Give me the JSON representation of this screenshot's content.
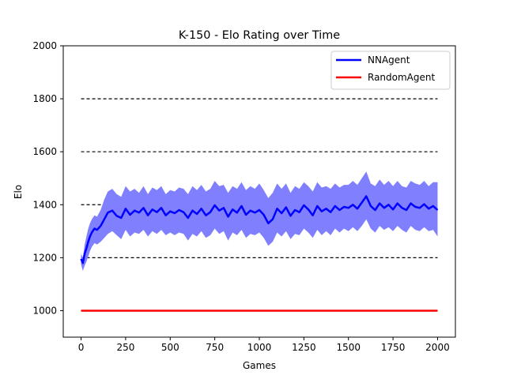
{
  "chart_data": {
    "type": "line",
    "title": "K-150 - Elo Rating over Time",
    "xlabel": "Games",
    "ylabel": "Elo",
    "xlim": [
      -100,
      2100
    ],
    "ylim": [
      900,
      2000
    ],
    "x_ticks": [
      0,
      250,
      500,
      750,
      1000,
      1250,
      1500,
      1750,
      2000
    ],
    "y_ticks": [
      1000,
      1200,
      1400,
      1600,
      1800,
      2000
    ],
    "reference_lines": [
      1200,
      1400,
      1600,
      1800
    ],
    "legend_position": "top-right",
    "colors": {
      "nnagent": "#0000ff",
      "nnagent_band": "#8080ff",
      "randomagent": "#ff0000",
      "reference": "#000000"
    },
    "series": [
      {
        "name": "NNAgent",
        "color": "#0000ff",
        "x": [
          0,
          10,
          20,
          30,
          40,
          50,
          60,
          75,
          90,
          110,
          130,
          150,
          175,
          200,
          225,
          250,
          275,
          300,
          325,
          350,
          375,
          400,
          425,
          450,
          475,
          500,
          525,
          550,
          575,
          600,
          625,
          650,
          675,
          700,
          725,
          750,
          775,
          800,
          825,
          850,
          875,
          900,
          925,
          950,
          975,
          1000,
          1025,
          1050,
          1075,
          1100,
          1125,
          1150,
          1175,
          1200,
          1225,
          1250,
          1275,
          1300,
          1325,
          1350,
          1375,
          1400,
          1425,
          1450,
          1475,
          1500,
          1525,
          1550,
          1575,
          1600,
          1625,
          1650,
          1675,
          1700,
          1725,
          1750,
          1775,
          1800,
          1825,
          1850,
          1875,
          1900,
          1925,
          1950,
          1975,
          2000
        ],
        "values": [
          1195,
          1180,
          1215,
          1235,
          1260,
          1280,
          1295,
          1310,
          1305,
          1320,
          1345,
          1370,
          1378,
          1358,
          1350,
          1385,
          1362,
          1378,
          1370,
          1388,
          1360,
          1382,
          1372,
          1388,
          1360,
          1375,
          1368,
          1380,
          1372,
          1350,
          1378,
          1365,
          1385,
          1360,
          1372,
          1398,
          1378,
          1388,
          1355,
          1382,
          1370,
          1395,
          1362,
          1378,
          1370,
          1380,
          1362,
          1330,
          1345,
          1385,
          1368,
          1390,
          1358,
          1380,
          1372,
          1398,
          1382,
          1360,
          1395,
          1375,
          1385,
          1372,
          1395,
          1380,
          1392,
          1388,
          1400,
          1385,
          1408,
          1432,
          1395,
          1380,
          1405,
          1388,
          1400,
          1382,
          1405,
          1388,
          1380,
          1405,
          1392,
          1388,
          1402,
          1385,
          1395,
          1380
        ],
        "band_upper": [
          1215,
          1200,
          1250,
          1280,
          1310,
          1330,
          1345,
          1360,
          1355,
          1380,
          1420,
          1450,
          1460,
          1440,
          1430,
          1470,
          1450,
          1460,
          1445,
          1470,
          1440,
          1465,
          1455,
          1470,
          1440,
          1455,
          1450,
          1465,
          1460,
          1440,
          1470,
          1455,
          1475,
          1450,
          1460,
          1490,
          1470,
          1475,
          1445,
          1470,
          1460,
          1485,
          1455,
          1470,
          1460,
          1480,
          1455,
          1425,
          1445,
          1480,
          1460,
          1480,
          1445,
          1470,
          1460,
          1485,
          1470,
          1450,
          1485,
          1465,
          1470,
          1460,
          1480,
          1465,
          1475,
          1475,
          1490,
          1475,
          1500,
          1525,
          1480,
          1470,
          1495,
          1475,
          1490,
          1470,
          1490,
          1470,
          1465,
          1490,
          1480,
          1475,
          1490,
          1470,
          1485,
          1485
        ],
        "band_lower": [
          1175,
          1150,
          1170,
          1185,
          1205,
          1225,
          1240,
          1255,
          1250,
          1260,
          1275,
          1290,
          1300,
          1285,
          1270,
          1305,
          1280,
          1295,
          1290,
          1305,
          1280,
          1300,
          1290,
          1305,
          1285,
          1295,
          1285,
          1295,
          1290,
          1265,
          1290,
          1280,
          1300,
          1275,
          1285,
          1310,
          1290,
          1300,
          1265,
          1295,
          1285,
          1305,
          1275,
          1290,
          1285,
          1295,
          1275,
          1245,
          1260,
          1295,
          1280,
          1300,
          1270,
          1290,
          1285,
          1310,
          1295,
          1275,
          1305,
          1285,
          1300,
          1285,
          1310,
          1295,
          1310,
          1300,
          1315,
          1300,
          1320,
          1345,
          1310,
          1295,
          1320,
          1305,
          1315,
          1300,
          1320,
          1305,
          1295,
          1320,
          1305,
          1300,
          1315,
          1300,
          1305,
          1280
        ]
      },
      {
        "name": "RandomAgent",
        "color": "#ff0000",
        "x": [
          0,
          2000
        ],
        "values": [
          1000,
          1000
        ]
      }
    ]
  }
}
